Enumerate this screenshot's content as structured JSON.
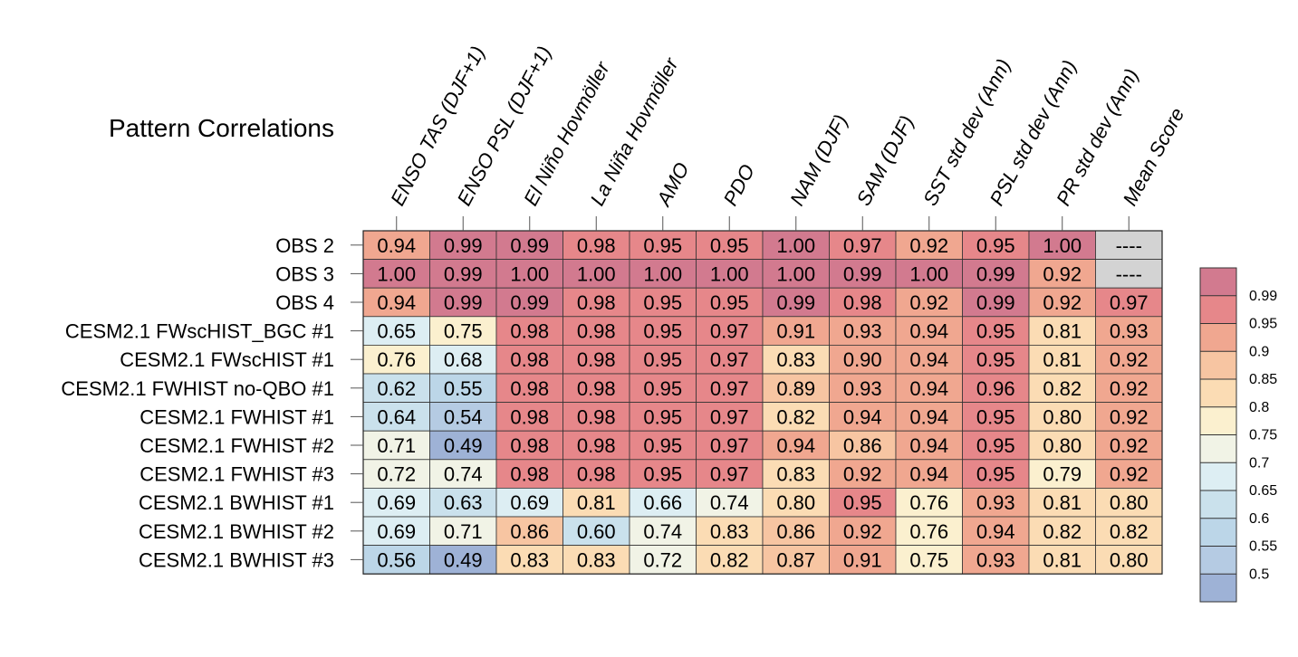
{
  "chart_data": {
    "type": "heatmap",
    "title": "Pattern Correlations",
    "columns": [
      "ENSO TAS (DJF+1)",
      "ENSO PSL (DJF+1)",
      "El Niño Hovmöller",
      "La Niña Hovmöller",
      "AMO",
      "PDO",
      "NAM (DJF)",
      "SAM (DJF)",
      "SST std dev (Ann)",
      "PSL std dev (Ann)",
      "PR std dev (Ann)",
      "Mean Score"
    ],
    "rows": [
      "OBS 2",
      "OBS 3",
      "OBS 4",
      "CESM2.1 FWscHIST_BGC #1",
      "CESM2.1 FWscHIST #1",
      "CESM2.1 FWHIST no-QBO #1",
      "CESM2.1 FWHIST #1",
      "CESM2.1 FWHIST #2",
      "CESM2.1 FWHIST #3",
      "CESM2.1 BWHIST #1",
      "CESM2.1 BWHIST #2",
      "CESM2.1 BWHIST #3"
    ],
    "values": [
      [
        0.94,
        0.99,
        0.99,
        0.98,
        0.95,
        0.95,
        1.0,
        0.97,
        0.92,
        0.95,
        1.0,
        null
      ],
      [
        1.0,
        0.99,
        1.0,
        1.0,
        1.0,
        1.0,
        1.0,
        0.99,
        1.0,
        0.99,
        0.92,
        null
      ],
      [
        0.94,
        0.99,
        0.99,
        0.98,
        0.95,
        0.95,
        0.99,
        0.98,
        0.92,
        0.99,
        0.92,
        0.97
      ],
      [
        0.65,
        0.75,
        0.98,
        0.98,
        0.95,
        0.97,
        0.91,
        0.93,
        0.94,
        0.95,
        0.81,
        0.93
      ],
      [
        0.76,
        0.68,
        0.98,
        0.98,
        0.95,
        0.97,
        0.83,
        0.9,
        0.94,
        0.95,
        0.81,
        0.92
      ],
      [
        0.62,
        0.55,
        0.98,
        0.98,
        0.95,
        0.97,
        0.89,
        0.93,
        0.94,
        0.96,
        0.82,
        0.92
      ],
      [
        0.64,
        0.54,
        0.98,
        0.98,
        0.95,
        0.97,
        0.82,
        0.94,
        0.94,
        0.95,
        0.8,
        0.92
      ],
      [
        0.71,
        0.49,
        0.98,
        0.98,
        0.95,
        0.97,
        0.94,
        0.86,
        0.94,
        0.95,
        0.8,
        0.92
      ],
      [
        0.72,
        0.74,
        0.98,
        0.98,
        0.95,
        0.97,
        0.83,
        0.92,
        0.94,
        0.95,
        0.79,
        0.92
      ],
      [
        0.69,
        0.63,
        0.69,
        0.81,
        0.66,
        0.74,
        0.8,
        0.95,
        0.76,
        0.93,
        0.81,
        0.8
      ],
      [
        0.69,
        0.71,
        0.86,
        0.6,
        0.74,
        0.83,
        0.86,
        0.92,
        0.76,
        0.94,
        0.82,
        0.82
      ],
      [
        0.56,
        0.49,
        0.83,
        0.83,
        0.72,
        0.82,
        0.87,
        0.91,
        0.75,
        0.93,
        0.81,
        0.8
      ]
    ],
    "missing_label": "----",
    "missing_color": "#d3d3d3",
    "colorbar": {
      "ticks": [
        "0.99",
        "0.95",
        "0.9",
        "0.85",
        "0.8",
        "0.75",
        "0.7",
        "0.65",
        "0.6",
        "0.55",
        "0.5"
      ],
      "bins": [
        {
          "min": 0.99,
          "color": "#d27a8f"
        },
        {
          "min": 0.95,
          "color": "#e6878a"
        },
        {
          "min": 0.9,
          "color": "#f0a790"
        },
        {
          "min": 0.85,
          "color": "#f7c5a2"
        },
        {
          "min": 0.8,
          "color": "#fbdcb4"
        },
        {
          "min": 0.75,
          "color": "#fbf0cf"
        },
        {
          "min": 0.7,
          "color": "#f1f3e6"
        },
        {
          "min": 0.65,
          "color": "#ddeef3"
        },
        {
          "min": 0.6,
          "color": "#cae1ec"
        },
        {
          "min": 0.55,
          "color": "#bcd6e8"
        },
        {
          "min": 0.5,
          "color": "#b5cbe3"
        },
        {
          "min": 0.0,
          "color": "#9eb2d6"
        }
      ]
    }
  }
}
